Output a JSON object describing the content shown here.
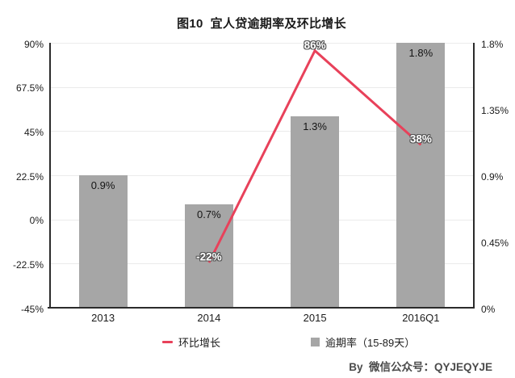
{
  "chart_data": {
    "type": "combo-bar-line",
    "title": "图10  宜人贷逾期率及环比增长",
    "categories": [
      "2013",
      "2014",
      "2015",
      "2016Q1"
    ],
    "series": [
      {
        "name": "环比增长",
        "type": "line",
        "axis": "left",
        "color": "#e8415a",
        "values": [
          null,
          -22,
          86,
          38
        ],
        "point_labels": [
          "",
          "-22%",
          "86%",
          "38%"
        ]
      },
      {
        "name": "逾期率（15-89天）",
        "type": "bar",
        "axis": "right",
        "color": "#a6a6a6",
        "values": [
          0.9,
          0.7,
          1.3,
          1.8
        ],
        "point_labels": [
          "0.9%",
          "0.7%",
          "1.3%",
          "1.8%"
        ]
      }
    ],
    "left_axis": {
      "min": -45,
      "max": 90,
      "ticks": [
        "90%",
        "67.5%",
        "45%",
        "22.5%",
        "0%",
        "-22.5%",
        "-45%"
      ]
    },
    "right_axis": {
      "min": 0,
      "max": 1.8,
      "ticks": [
        "1.8%",
        "1.35%",
        "0.9%",
        "0.45%",
        "0%"
      ]
    },
    "legend": [
      {
        "marker": "line-dash",
        "color": "#e8415a",
        "label": "环比增长"
      },
      {
        "marker": "square",
        "color": "#a6a6a6",
        "label": "逾期率（15-89天）"
      }
    ],
    "grid": true,
    "legend_position": "bottom",
    "footer": "By  微信公众号：QYJEQYJE"
  },
  "colors": {
    "bar": "#a6a6a6",
    "line": "#e8415a",
    "gridline": "#ebebeb",
    "axis": "#2b2b2b",
    "background": "#ffffff"
  }
}
